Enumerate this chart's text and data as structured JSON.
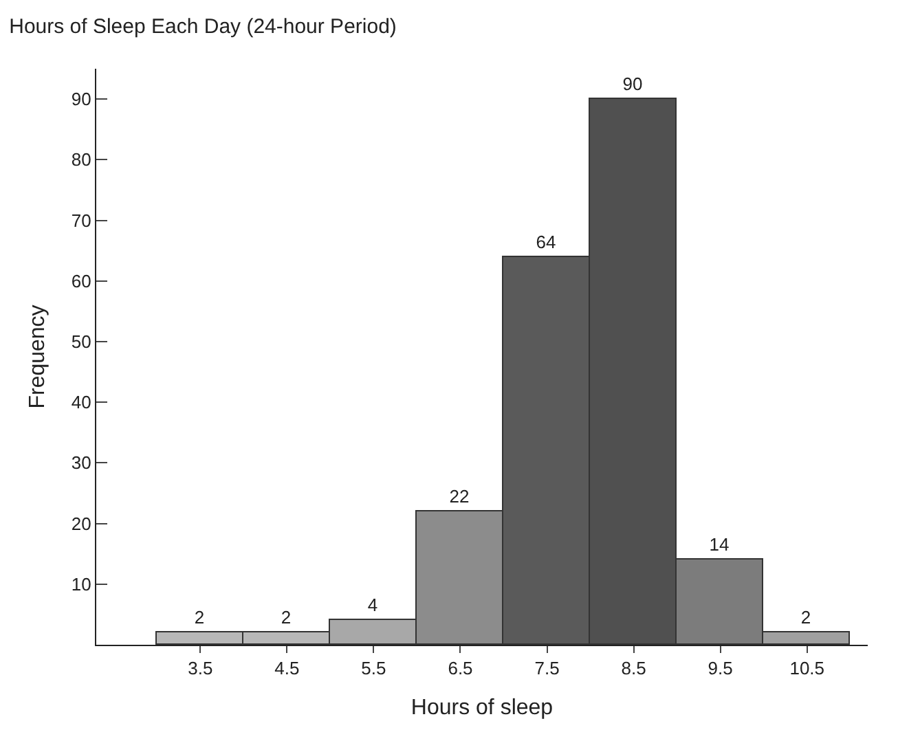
{
  "chart_data": {
    "type": "histogram",
    "title": "Hours of Sleep Each Day (24-hour Period)",
    "xlabel": "Hours of sleep",
    "ylabel": "Frequency",
    "bins": [
      3,
      4,
      5,
      6,
      7,
      8,
      9,
      10,
      11
    ],
    "values": [
      2,
      2,
      4,
      22,
      64,
      90,
      14,
      2
    ],
    "colors": [
      "#b8b8b8",
      "#b8b8b8",
      "#a8a8a8",
      "#8c8c8c",
      "#5a5a5a",
      "#505050",
      "#7c7c7c",
      "#a0a0a0"
    ],
    "data_labels": true,
    "xlim": [
      2.3,
      11.2
    ],
    "xticks": [
      3.5,
      4.5,
      5.5,
      6.5,
      7.5,
      8.5,
      9.5,
      10.5
    ],
    "ylim": [
      0,
      95
    ],
    "yticks": [
      10,
      20,
      30,
      40,
      50,
      60,
      70,
      80,
      90
    ]
  }
}
